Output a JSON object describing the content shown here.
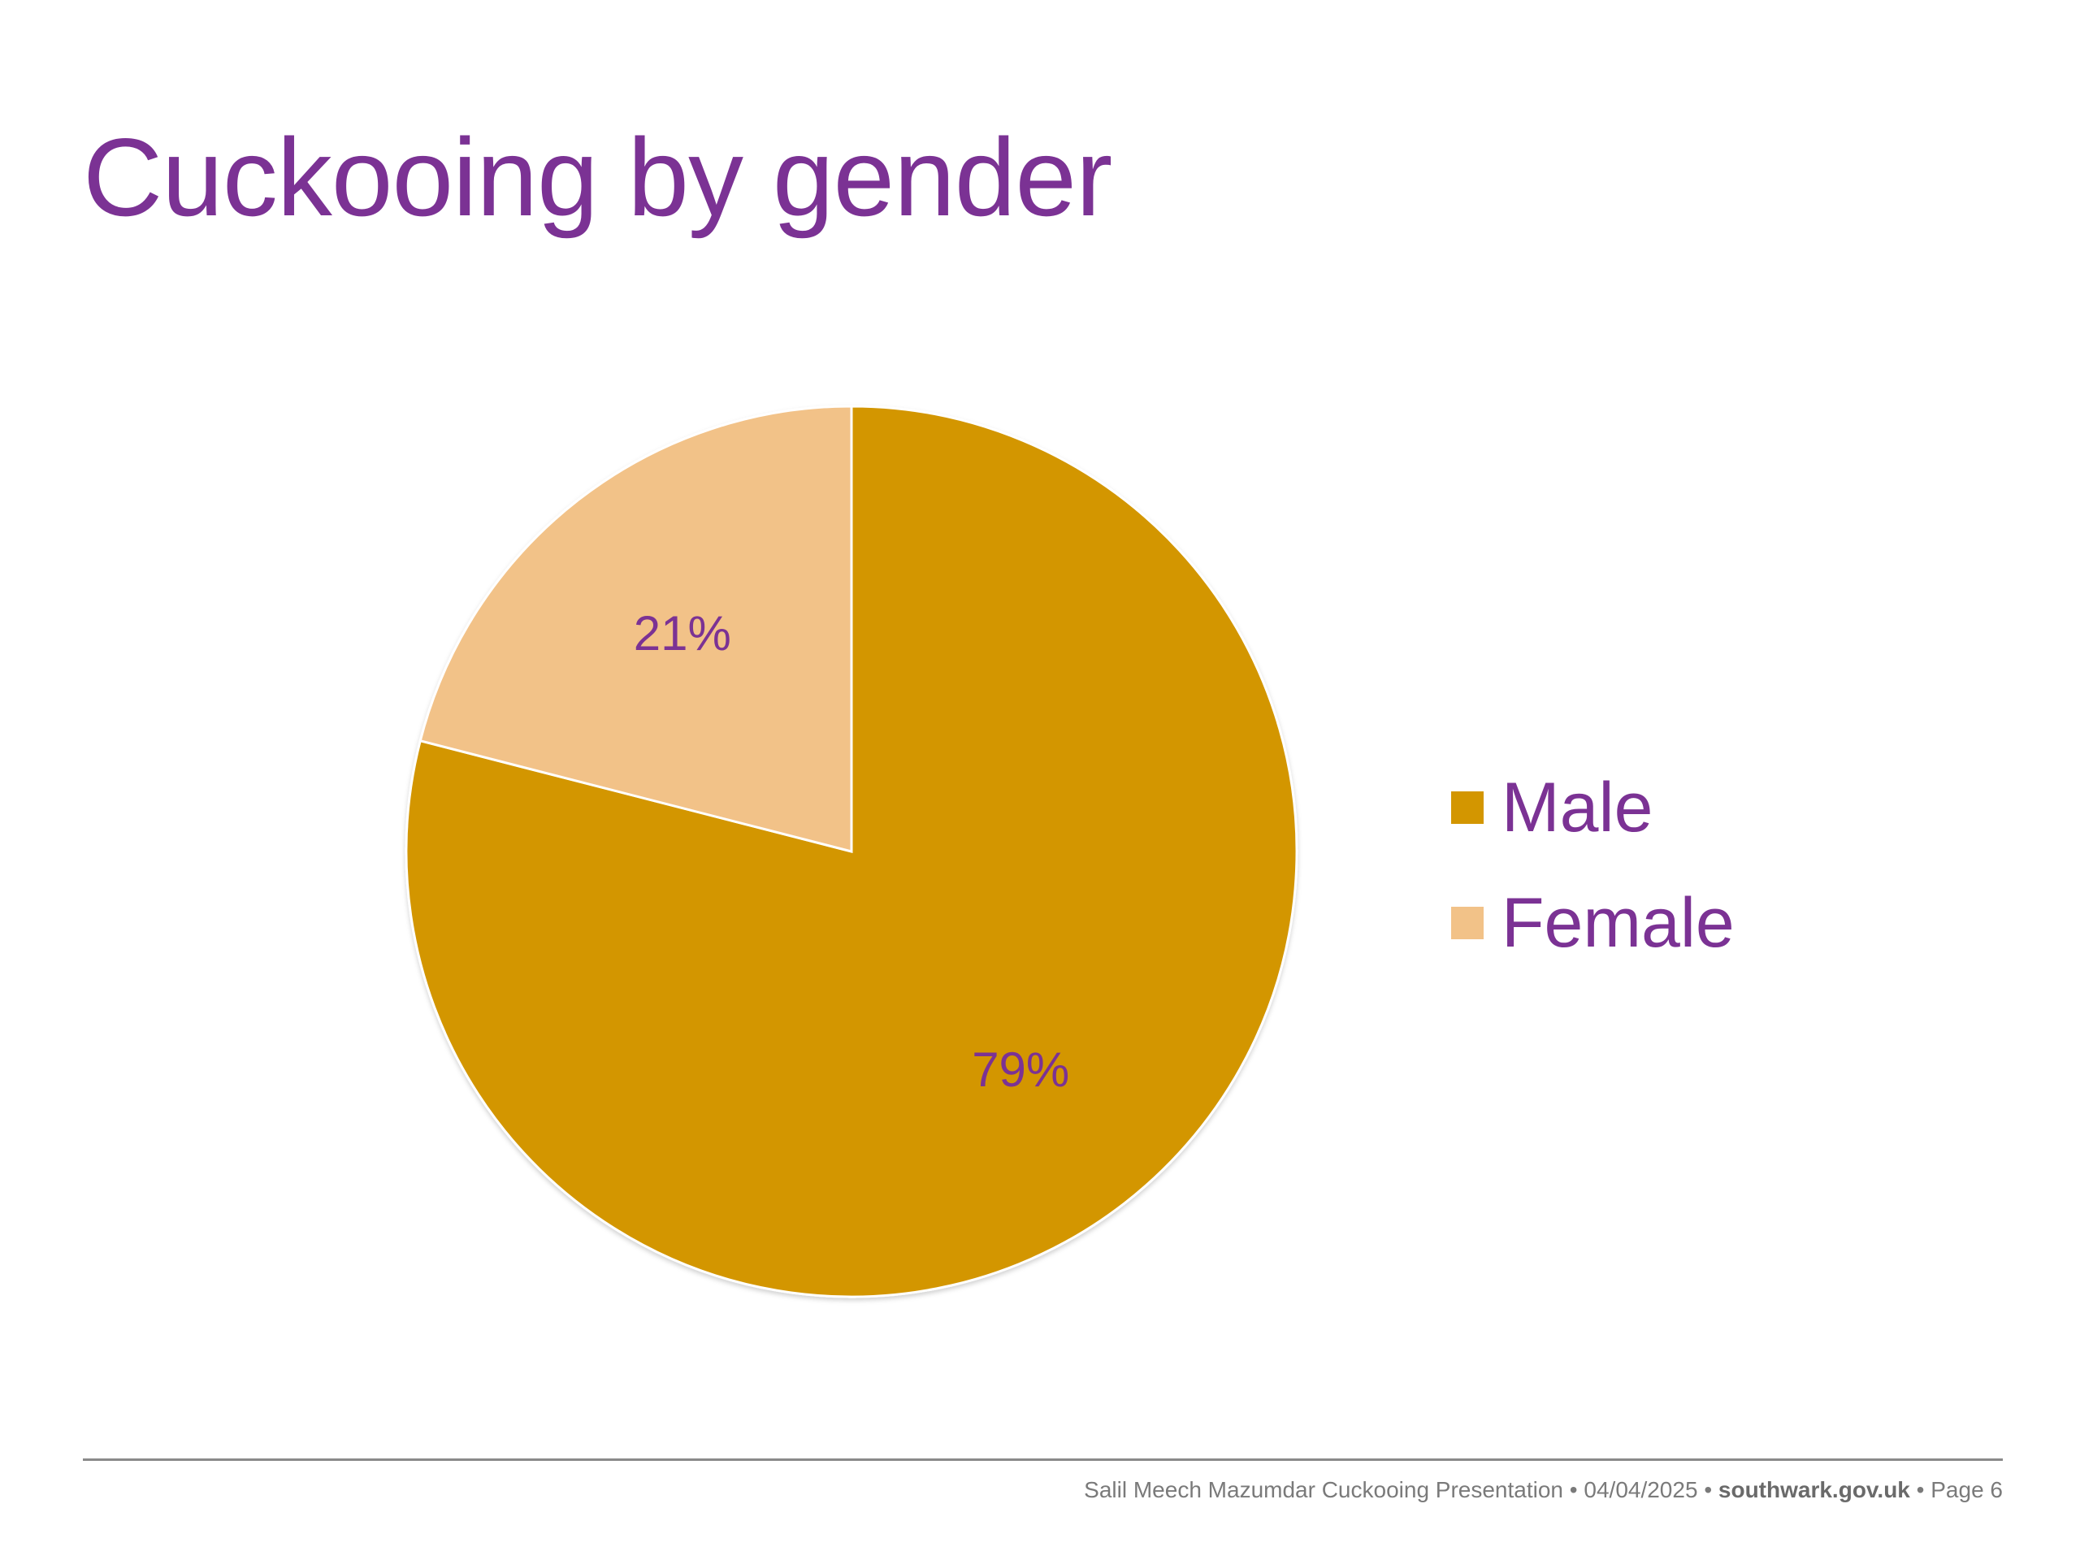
{
  "slide": {
    "title": "Cuckooing by gender",
    "title_color": "#7b3294"
  },
  "chart_data": {
    "type": "pie",
    "title": "",
    "categories": [
      "Male",
      "Female"
    ],
    "values": [
      79,
      21
    ],
    "labels": [
      "79%",
      "21%"
    ],
    "colors": [
      "#d39600",
      "#f2c288"
    ],
    "label_color": "#7b3294",
    "legend_position": "right",
    "start_angle": "12 o'clock, clockwise"
  },
  "footer": {
    "author_title": "Salil Meech Mazumdar Cuckooing Presentation",
    "separator": "•",
    "date": "04/04/2025",
    "site": "southwark.gov.uk",
    "page": "Page 6"
  }
}
